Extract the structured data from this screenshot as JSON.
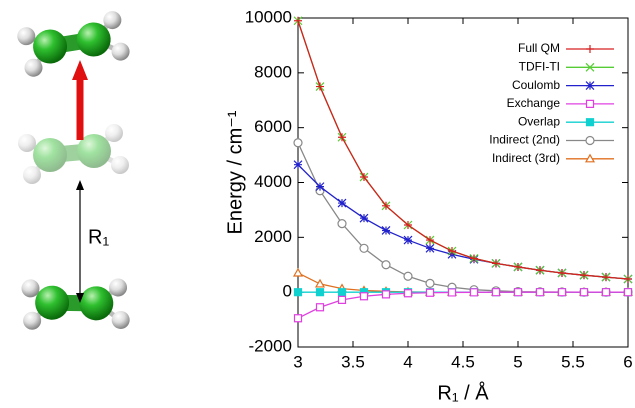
{
  "chart_data": {
    "type": "line",
    "annotation": "R₁",
    "xlabel": "R₁ / Å",
    "ylabel": "Energy / cm⁻¹",
    "x": [
      3,
      3.2,
      3.4,
      3.6,
      3.8,
      4.0,
      4.2,
      4.4,
      4.6,
      4.8,
      5.0,
      5.2,
      5.4,
      5.6,
      5.8,
      6.0
    ],
    "xlim": [
      3,
      6
    ],
    "xticks": [
      3,
      3.5,
      4,
      4.5,
      5,
      5.5,
      6
    ],
    "ylim": [
      -2000,
      10000
    ],
    "yticks": [
      -2000,
      0,
      2000,
      4000,
      6000,
      8000,
      10000
    ],
    "legend": "upper right",
    "series": [
      {
        "name": "Full QM",
        "color": "#d62020",
        "marker": "plus",
        "values": [
          9900,
          7500,
          5650,
          4200,
          3150,
          2450,
          1900,
          1500,
          1230,
          1050,
          920,
          800,
          700,
          620,
          550,
          480
        ]
      },
      {
        "name": "TDFI-TI",
        "color": "#55cc33",
        "marker": "x",
        "values": [
          9900,
          7500,
          5650,
          4200,
          3150,
          2450,
          1900,
          1500,
          1230,
          1050,
          920,
          800,
          700,
          620,
          550,
          480
        ]
      },
      {
        "name": "Coulomb",
        "color": "#2222cc",
        "marker": "star",
        "values": [
          4650,
          3850,
          3250,
          2700,
          2250,
          1900,
          1600,
          1380,
          1200,
          1050,
          920,
          800,
          700,
          620,
          550,
          480
        ]
      },
      {
        "name": "Exchange",
        "color": "#e040e0",
        "marker": "square-open",
        "values": [
          -950,
          -550,
          -280,
          -150,
          -80,
          -40,
          -20,
          -10,
          -5,
          0,
          0,
          0,
          0,
          0,
          0,
          0
        ]
      },
      {
        "name": "Overlap",
        "color": "#10d0d0",
        "marker": "square",
        "values": [
          0,
          0,
          0,
          0,
          0,
          0,
          0,
          0,
          0,
          0,
          0,
          0,
          0,
          0,
          0,
          0
        ]
      },
      {
        "name": "Indirect (2nd)",
        "color": "#888888",
        "marker": "circle-open",
        "values": [
          5450,
          3700,
          2500,
          1600,
          1000,
          580,
          320,
          180,
          90,
          50,
          20,
          10,
          5,
          0,
          0,
          0
        ]
      },
      {
        "name": "Indirect (3rd)",
        "color": "#e07020",
        "marker": "triangle-open",
        "values": [
          700,
          300,
          130,
          60,
          30,
          10,
          0,
          0,
          0,
          0,
          0,
          0,
          0,
          0,
          0,
          0
        ]
      }
    ]
  }
}
